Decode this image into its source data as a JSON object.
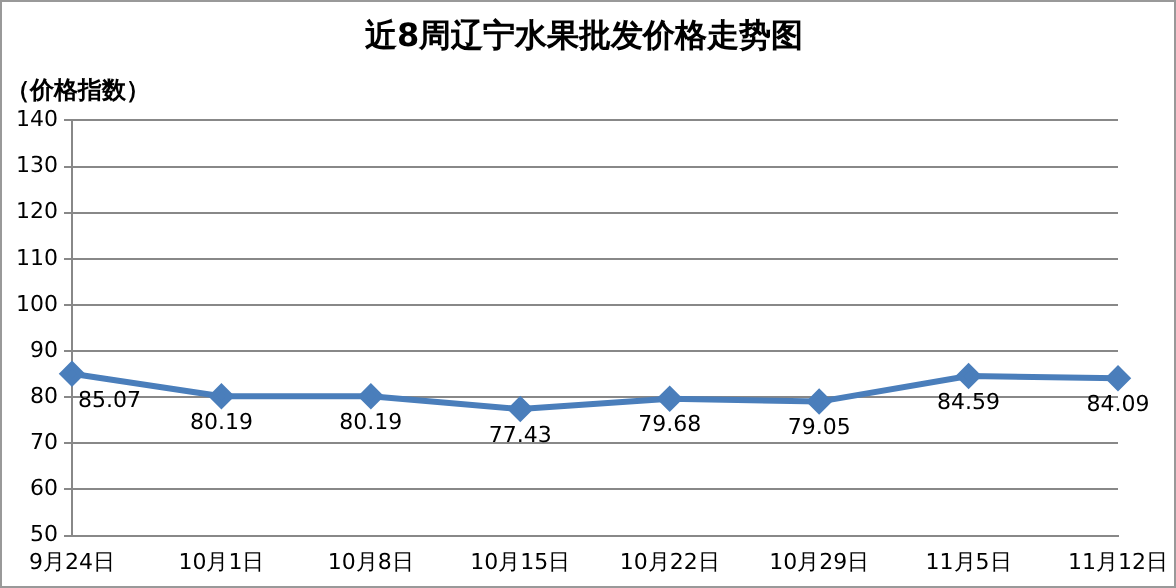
{
  "chart_data": {
    "type": "line",
    "title": "近8周辽宁水果批发价格走势图",
    "ylabel": "（价格指数）",
    "categories": [
      "9月24日",
      "10月1日",
      "10月8日",
      "10月15日",
      "10月22日",
      "10月29日",
      "11月5日",
      "11月12日"
    ],
    "series": [
      {
        "color": "#4a7ebb",
        "values": [
          85.07,
          80.19,
          80.19,
          77.43,
          79.68,
          79.05,
          84.59,
          84.09
        ]
      }
    ],
    "ylim": [
      50,
      140
    ],
    "yticks": [
      50,
      60,
      70,
      80,
      90,
      100,
      110,
      120,
      130,
      140
    ],
    "grid": "y",
    "legend": false,
    "marker": "diamond",
    "line_style": "solid",
    "data_labels": true
  }
}
